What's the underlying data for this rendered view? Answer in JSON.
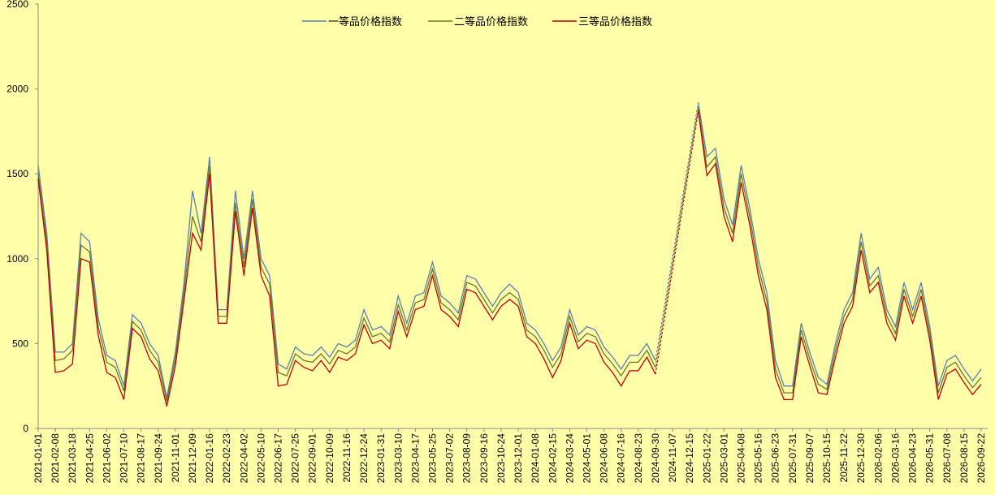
{
  "chart_data": {
    "type": "line",
    "categories": [
      "2021-01-01",
      null,
      "2021-02-08",
      null,
      "2021-03-18",
      null,
      "2021-04-25",
      null,
      "2021-06-02",
      null,
      "2021-07-10",
      null,
      "2021-08-17",
      null,
      "2021-09-24",
      null,
      "2021-11-01",
      null,
      "2021-12-09",
      null,
      "2022-01-16",
      null,
      "2022-02-23",
      null,
      "2022-04-02",
      null,
      "2022-05-10",
      null,
      "2022-06-17",
      null,
      "2022-07-25",
      null,
      "2022-09-01",
      null,
      "2022-10-09",
      null,
      "2022-11-16",
      null,
      "2022-12-24",
      null,
      "2023-01-31",
      null,
      "2023-03-10",
      null,
      "2023-04-17",
      null,
      "2023-05-25",
      null,
      "2023-07-02",
      null,
      "2023-08-09",
      null,
      "2023-09-16",
      null,
      "2023-10-24",
      null,
      "2023-12-01",
      null,
      "2024-01-08",
      null,
      "2024-02-15",
      null,
      "2024-03-24",
      null,
      "2024-05-01",
      null,
      "2024-06-08",
      null,
      "2024-07-16",
      null,
      "2024-08-23",
      null,
      "2024-09-30",
      null,
      "2024-11-07",
      null,
      "2024-12-15",
      null,
      "2025-01-22",
      null,
      "2025-03-01",
      null,
      "2025-04-08",
      null,
      "2025-05-16",
      null,
      "2025-06-23",
      null,
      "2025-07-31",
      null,
      "2025-09-07",
      null,
      "2025-10-15",
      null,
      "2025-11-22",
      null,
      "2025-12-30",
      null,
      "2026-02-06",
      null,
      "2026-03-16",
      null,
      "2026-04-23",
      null,
      "2026-05-31",
      null,
      "2026-07-08",
      null,
      "2026-08-15",
      null,
      "2026-09-22"
    ],
    "series": [
      {
        "name": "一等品价格指数",
        "color": "#5a7fb0",
        "values": [
          1550,
          1150,
          450,
          450,
          500,
          1150,
          1100,
          650,
          430,
          400,
          250,
          670,
          620,
          500,
          430,
          180,
          450,
          850,
          1400,
          1150,
          1600,
          700,
          700,
          1400,
          1000,
          1400,
          1000,
          900,
          380,
          350,
          480,
          440,
          430,
          480,
          420,
          500,
          480,
          520,
          700,
          580,
          600,
          550,
          780,
          620,
          780,
          800,
          980,
          780,
          740,
          680,
          900,
          880,
          800,
          720,
          800,
          850,
          800,
          620,
          580,
          500,
          400,
          480,
          700,
          550,
          600,
          580,
          480,
          420,
          350,
          430,
          430,
          500,
          400,
          null,
          null,
          null,
          null,
          1920,
          1600,
          1650,
          1350,
          1200,
          1550,
          1300,
          1000,
          800,
          400,
          250,
          250,
          620,
          450,
          300,
          260,
          500,
          700,
          800,
          1150,
          880,
          950,
          700,
          600,
          860,
          700,
          860,
          600,
          250,
          400,
          430,
          350,
          280,
          350
        ]
      },
      {
        "name": "二等品价格指数",
        "color": "#6b7a22",
        "values": [
          1500,
          1100,
          400,
          410,
          460,
          1080,
          1040,
          600,
          390,
          360,
          220,
          630,
          580,
          460,
          390,
          160,
          410,
          800,
          1250,
          1100,
          1550,
          660,
          660,
          1330,
          950,
          1350,
          950,
          850,
          330,
          310,
          440,
          400,
          390,
          440,
          380,
          460,
          440,
          480,
          650,
          540,
          560,
          510,
          730,
          580,
          740,
          760,
          940,
          740,
          700,
          640,
          860,
          840,
          760,
          680,
          760,
          800,
          760,
          580,
          540,
          460,
          360,
          440,
          660,
          510,
          560,
          540,
          440,
          380,
          310,
          390,
          390,
          460,
          360,
          null,
          null,
          null,
          null,
          1890,
          1540,
          1600,
          1300,
          1150,
          1500,
          1250,
          950,
          750,
          350,
          210,
          210,
          580,
          410,
          260,
          230,
          460,
          660,
          760,
          1100,
          840,
          900,
          660,
          560,
          820,
          660,
          820,
          560,
          210,
          360,
          390,
          310,
          240,
          300
        ]
      },
      {
        "name": "三等品价格指数",
        "color": "#c00000",
        "values": [
          1470,
          1050,
          330,
          340,
          380,
          1000,
          980,
          550,
          330,
          300,
          170,
          590,
          540,
          410,
          340,
          130,
          370,
          750,
          1150,
          1050,
          1500,
          620,
          620,
          1280,
          900,
          1300,
          900,
          780,
          250,
          260,
          400,
          360,
          340,
          400,
          330,
          420,
          400,
          440,
          610,
          500,
          520,
          470,
          690,
          540,
          700,
          720,
          900,
          700,
          660,
          600,
          820,
          800,
          720,
          640,
          720,
          760,
          720,
          540,
          500,
          410,
          300,
          400,
          620,
          470,
          520,
          500,
          390,
          330,
          250,
          340,
          340,
          420,
          320,
          null,
          null,
          null,
          null,
          1870,
          1490,
          1560,
          1250,
          1100,
          1450,
          1200,
          900,
          700,
          300,
          170,
          170,
          540,
          370,
          210,
          200,
          420,
          620,
          720,
          1050,
          800,
          860,
          620,
          520,
          780,
          620,
          780,
          520,
          170,
          320,
          350,
          270,
          200,
          260
        ]
      }
    ],
    "ylim": [
      0,
      2500
    ],
    "yticks": [
      0,
      500,
      1000,
      1500,
      2000,
      2500
    ],
    "legend": "top",
    "connect_gaps": "dashed",
    "background": "#ffffaa"
  }
}
